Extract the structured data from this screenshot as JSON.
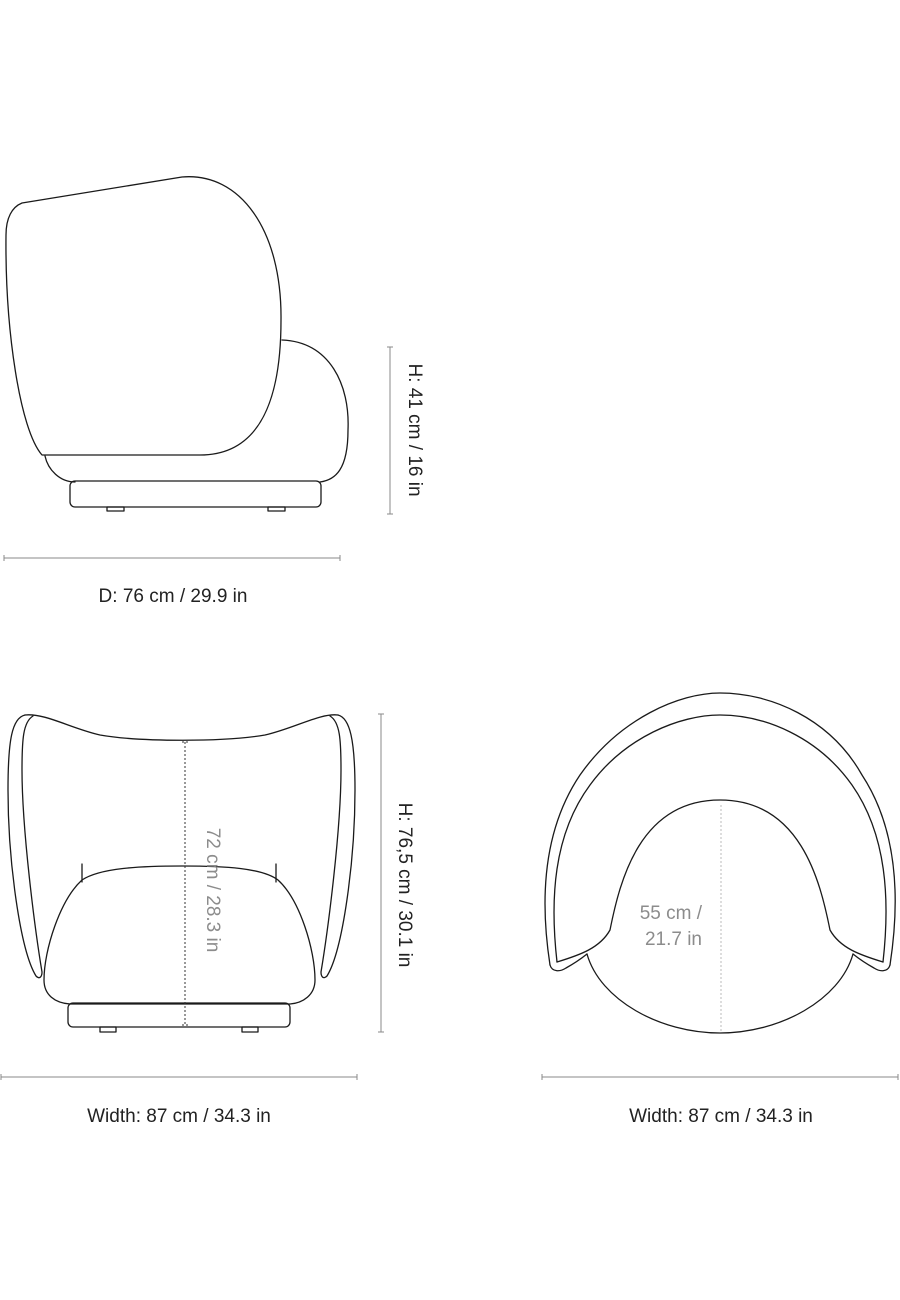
{
  "side_view": {
    "height_label": "H: 41 cm / 16 in",
    "depth_label": "D: 76 cm / 29.9 in"
  },
  "front_view": {
    "height_label": "H: 76,5 cm / 30.1 in",
    "inner_height_label": "72 cm / 28.3 in",
    "width_label": "Width: 87 cm / 34.3 in"
  },
  "top_view": {
    "seat_depth_line1": "55 cm /",
    "seat_depth_line2": "21.7 in",
    "width_label": "Width: 87 cm / 34.3 in"
  },
  "colors": {
    "outline": "#1a1a1a",
    "dimension": "#8a8a8a",
    "secondary_text": "#8c8c8c"
  }
}
